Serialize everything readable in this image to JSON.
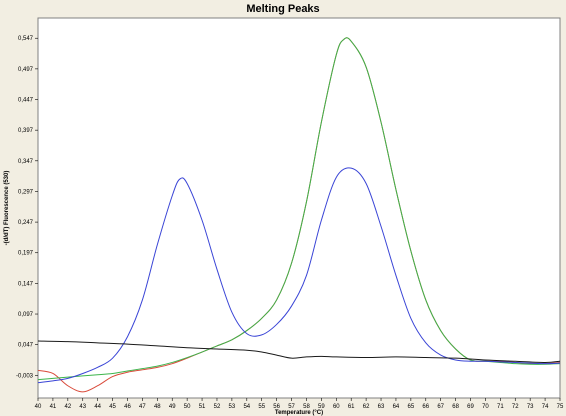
{
  "chart_data": {
    "type": "line",
    "title": "Melting Peaks",
    "xlabel": "Temperature (°C)",
    "ylabel": "-(d/dT) Fluorescence (530)",
    "xlim": [
      40,
      75
    ],
    "ylim": [
      -0.04,
      0.58
    ],
    "x_ticks": [
      "40",
      "41",
      "42",
      "43",
      "44",
      "45",
      "46",
      "47",
      "48",
      "49",
      "50",
      "51",
      "52",
      "53",
      "54",
      "55",
      "56",
      "57",
      "58",
      "59",
      "60",
      "61",
      "62",
      "63",
      "64",
      "65",
      "66",
      "67",
      "68",
      "69",
      "70",
      "71",
      "72",
      "73",
      "74",
      "75"
    ],
    "y_ticks": [
      "-0,003",
      "0,047",
      "0,097",
      "0,147",
      "0,197",
      "0,247",
      "0,297",
      "0,347",
      "0,397",
      "0,447",
      "0,497",
      "0,547"
    ],
    "grid": false,
    "series": [
      {
        "color": "#d94a3a",
        "x": [
          40,
          41,
          42,
          43,
          44,
          45,
          46,
          47,
          48,
          49,
          50,
          51,
          52,
          53,
          54,
          55,
          56,
          57,
          58,
          59,
          60,
          60.5,
          61,
          62,
          63,
          64,
          65,
          66,
          67,
          68,
          69,
          70,
          71,
          72,
          73,
          74,
          75
        ],
        "y": [
          0.005,
          0,
          -0.02,
          -0.03,
          -0.02,
          -0.005,
          0.002,
          0.006,
          0.01,
          0.016,
          0.025,
          0.035,
          0.045,
          0.055,
          0.07,
          0.09,
          0.12,
          0.18,
          0.28,
          0.41,
          0.52,
          0.545,
          0.542,
          0.5,
          0.41,
          0.3,
          0.2,
          0.12,
          0.07,
          0.04,
          0.022,
          0.02,
          0.02,
          0.018,
          0.016,
          0.016,
          0.018
        ]
      },
      {
        "color": "#3cb44b",
        "x": [
          40,
          41,
          42,
          43,
          44,
          45,
          46,
          47,
          48,
          49,
          50,
          51,
          52,
          53,
          54,
          55,
          56,
          57,
          58,
          59,
          60,
          60.5,
          61,
          62,
          63,
          64,
          65,
          66,
          67,
          68,
          69,
          70,
          71,
          72,
          73,
          74,
          75
        ],
        "y": [
          -0.01,
          -0.008,
          -0.006,
          -0.004,
          -0.002,
          0,
          0.004,
          0.008,
          0.012,
          0.018,
          0.026,
          0.035,
          0.045,
          0.055,
          0.07,
          0.09,
          0.12,
          0.18,
          0.28,
          0.41,
          0.52,
          0.545,
          0.542,
          0.5,
          0.41,
          0.3,
          0.2,
          0.12,
          0.07,
          0.04,
          0.022,
          0.02,
          0.018,
          0.016,
          0.015,
          0.015,
          0.016
        ]
      },
      {
        "color": "#3a45d6",
        "x": [
          40,
          41,
          42,
          43,
          44,
          45,
          46,
          47,
          48,
          49,
          49.5,
          50,
          51,
          52,
          53,
          54,
          55,
          56,
          57,
          58,
          59,
          60,
          61,
          62,
          63,
          64,
          65,
          66,
          67,
          68,
          69,
          70,
          71,
          72,
          73,
          74,
          75
        ],
        "y": [
          -0.015,
          -0.012,
          -0.008,
          0,
          0.01,
          0.025,
          0.06,
          0.12,
          0.21,
          0.29,
          0.317,
          0.31,
          0.25,
          0.17,
          0.1,
          0.065,
          0.063,
          0.08,
          0.11,
          0.16,
          0.25,
          0.32,
          0.335,
          0.31,
          0.24,
          0.16,
          0.09,
          0.05,
          0.03,
          0.022,
          0.02,
          0.02,
          0.019,
          0.018,
          0.017,
          0.016,
          0.017
        ]
      },
      {
        "color": "#1a1a1a",
        "x": [
          40,
          42,
          44,
          46,
          48,
          50,
          52,
          54,
          55,
          56,
          57,
          58,
          59,
          60,
          62,
          64,
          66,
          68,
          70,
          72,
          74,
          75
        ],
        "y": [
          0.053,
          0.052,
          0.05,
          0.048,
          0.045,
          0.042,
          0.04,
          0.038,
          0.035,
          0.03,
          0.025,
          0.027,
          0.028,
          0.027,
          0.026,
          0.027,
          0.026,
          0.025,
          0.022,
          0.02,
          0.018,
          0.02
        ]
      }
    ]
  }
}
